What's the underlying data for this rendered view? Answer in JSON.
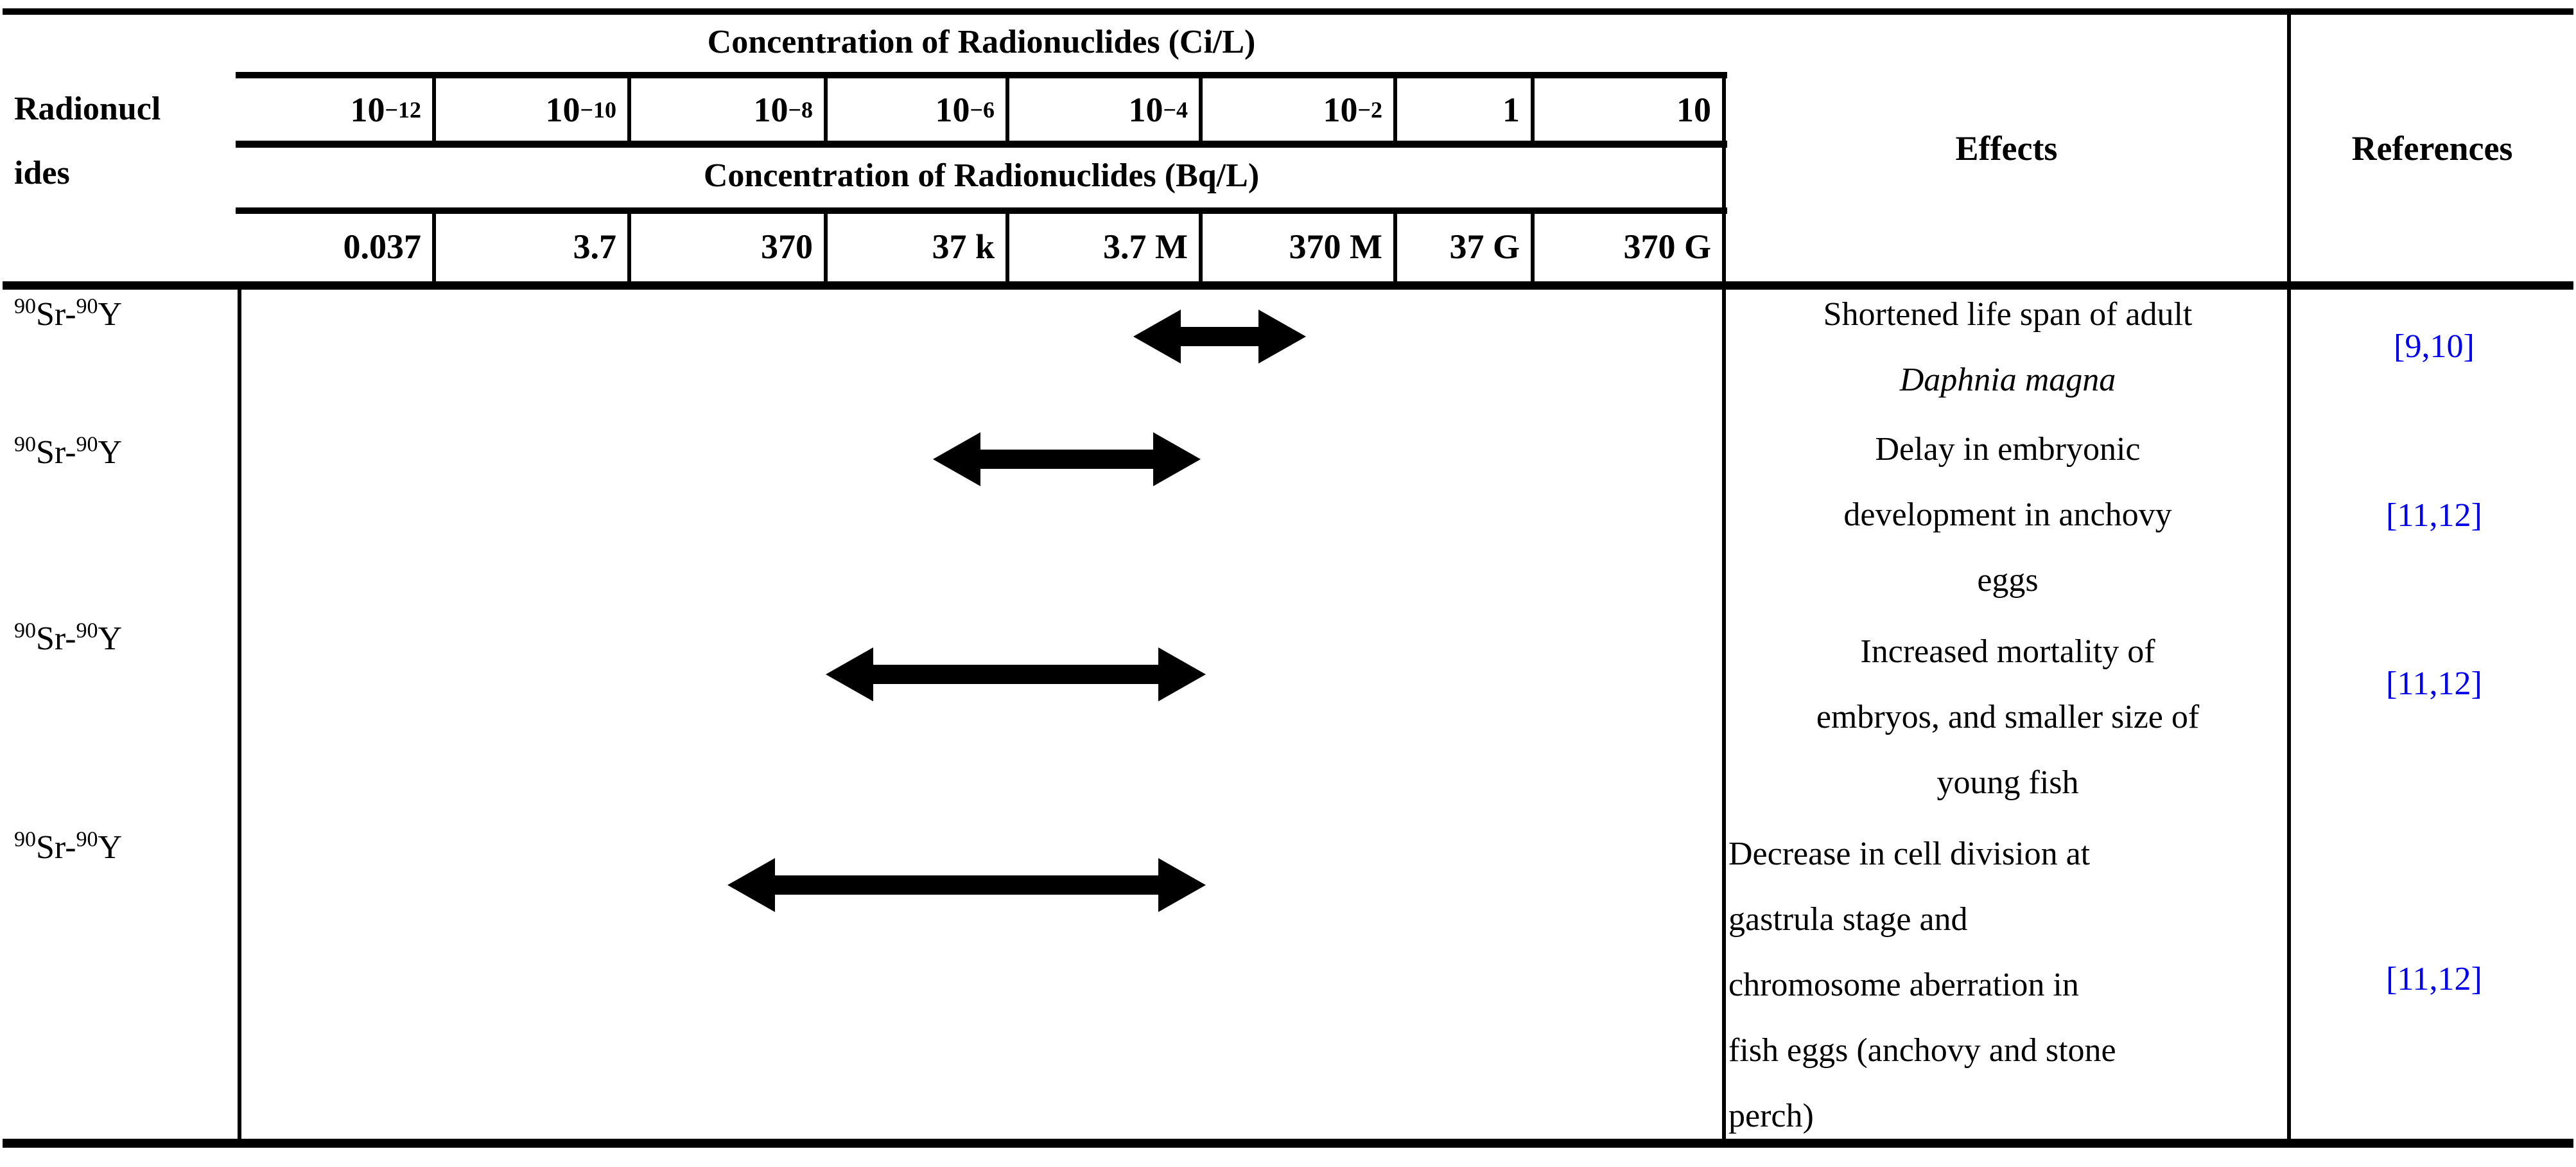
{
  "header": {
    "radionuclides_label_lines": [
      "Radionucl",
      "ides"
    ],
    "ci_title": "Concentration of Radionuclides (Ci/L)",
    "bq_title": "Concentration of Radionuclides (Bq/L)",
    "effects_title": "Effects",
    "references_title": "References",
    "ci_scale": [
      {
        "base": "10",
        "exp": "−12"
      },
      {
        "base": "10",
        "exp": "−10"
      },
      {
        "base": "10",
        "exp": "−8"
      },
      {
        "base": "10",
        "exp": "−6"
      },
      {
        "base": "10",
        "exp": "−4"
      },
      {
        "base": "10",
        "exp": "−2"
      },
      {
        "base": "1",
        "exp": ""
      },
      {
        "base": "10",
        "exp": ""
      }
    ],
    "bq_scale": [
      "0.037",
      "3.7",
      "370",
      "37 k",
      "3.7 M",
      "370 M",
      "37 G",
      "370 G"
    ]
  },
  "rows": [
    {
      "nuclide": {
        "mass1": "90",
        "element1": "Sr-",
        "mass2": "90",
        "element2": "Y"
      },
      "effect_lines": [
        {
          "text": "Shortened life span of adult",
          "italic": false
        },
        {
          "text": "Daphnia magna",
          "italic": true
        }
      ],
      "align": "center",
      "reference": "[9,10]",
      "range_log10_ci": [
        -4.7,
        -2.92
      ]
    },
    {
      "nuclide": {
        "mass1": "90",
        "element1": "Sr-",
        "mass2": "90",
        "element2": "Y"
      },
      "effect_lines": [
        {
          "text": "Delay in embryonic",
          "italic": false
        },
        {
          "text": "development in anchovy",
          "italic": false
        },
        {
          "text": "eggs",
          "italic": false
        }
      ],
      "align": "center",
      "reference": "[11,12]",
      "range_log10_ci": [
        -6.82,
        -4.0
      ]
    },
    {
      "nuclide": {
        "mass1": "90",
        "element1": "Sr-",
        "mass2": "90",
        "element2": "Y"
      },
      "effect_lines": [
        {
          "text": "Increased mortality of",
          "italic": false
        },
        {
          "text": "embryos, and smaller size of",
          "italic": false
        },
        {
          "text": "young fish",
          "italic": false
        }
      ],
      "align": "center",
      "reference": "[11,12]",
      "range_log10_ci": [
        -8.0,
        -3.95
      ]
    },
    {
      "nuclide": {
        "mass1": "90",
        "element1": "Sr-",
        "mass2": "90",
        "element2": "Y"
      },
      "effect_lines": [
        {
          "text": "Decrease in cell division at",
          "italic": false
        },
        {
          "text": "gastrula stage and",
          "italic": false
        },
        {
          "text": "chromosome aberration in",
          "italic": false
        },
        {
          "text": "fish eggs (anchovy and stone",
          "italic": false
        },
        {
          "text": "perch)",
          "italic": false
        }
      ],
      "align": "left",
      "reference": "[11,12]",
      "range_log10_ci": [
        -9.0,
        -3.95
      ]
    }
  ],
  "colors": {
    "text": "#000000",
    "background": "#FFFFFF",
    "reference_blue": "#0000EE"
  },
  "chart_data": {
    "type": "table",
    "title": "Concentration of Radionuclides vs. biological effects",
    "x_axis_top_label": "Concentration of Radionuclides (Ci/L)",
    "x_axis_top_ticks": [
      "10^-12",
      "10^-10",
      "10^-8",
      "10^-6",
      "10^-4",
      "10^-2",
      "1",
      "10"
    ],
    "x_axis_bottom_label": "Concentration of Radionuclides (Bq/L)",
    "x_axis_bottom_ticks": [
      "0.037",
      "3.7",
      "370",
      "37 k",
      "3.7 M",
      "370 M",
      "37 G",
      "370 G"
    ],
    "series": [
      {
        "radionuclide": "90Sr-90Y",
        "effect": "Shortened life span of adult Daphnia magna",
        "range_ci_per_l": [
          2e-05,
          0.0012
        ],
        "references": "[9,10]"
      },
      {
        "radionuclide": "90Sr-90Y",
        "effect": "Delay in embryonic development in anchovy eggs",
        "range_ci_per_l": [
          1.5e-07,
          0.0001
        ],
        "references": "[11,12]"
      },
      {
        "radionuclide": "90Sr-90Y",
        "effect": "Increased mortality of embryos, and smaller size of young fish",
        "range_ci_per_l": [
          1e-08,
          0.00011
        ],
        "references": "[11,12]"
      },
      {
        "radionuclide": "90Sr-90Y",
        "effect": "Decrease in cell division at gastrula stage and chromosome aberration in fish eggs (anchovy and stone perch)",
        "range_ci_per_l": [
          1e-09,
          0.00011
        ],
        "references": "[11,12]"
      }
    ]
  }
}
